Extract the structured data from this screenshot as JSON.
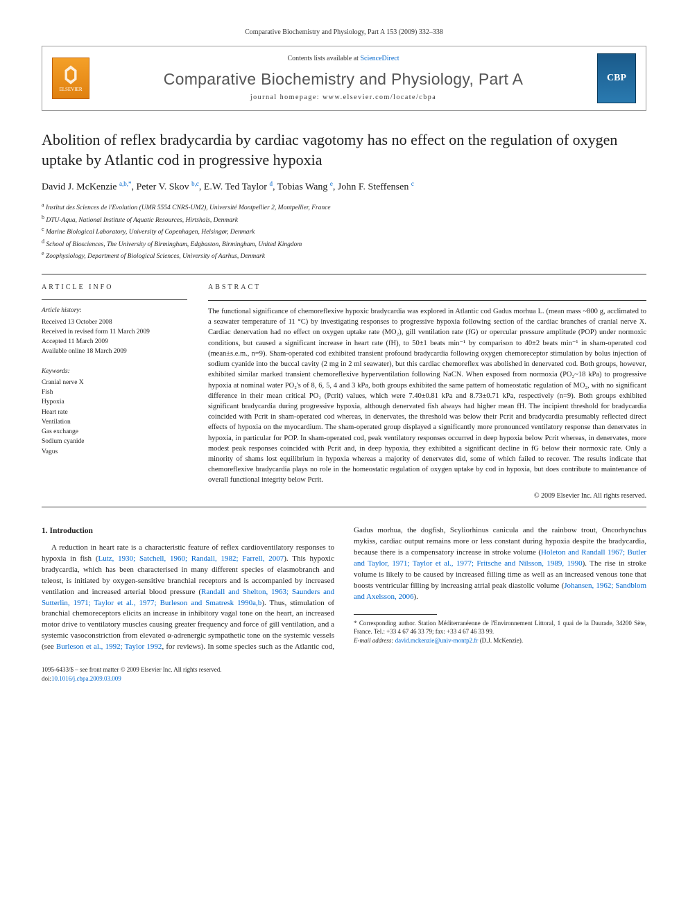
{
  "header": {
    "running": "Comparative Biochemistry and Physiology, Part A 153 (2009) 332–338"
  },
  "banner": {
    "contents_prefix": "Contents lists available at ",
    "sd_label": "ScienceDirect",
    "journal_name": "Comparative Biochemistry and Physiology, Part A",
    "homepage_prefix": "journal homepage: ",
    "homepage_url": "www.elsevier.com/locate/cbpa",
    "elsevier_label": "ELSEVIER",
    "cover_label": "CBP"
  },
  "article": {
    "title": "Abolition of reflex bradycardia by cardiac vagotomy has no effect on the regulation of oxygen uptake by Atlantic cod in progressive hypoxia",
    "authors_html": "David J. McKenzie <sup>a,b,*</sup>, Peter V. Skov <sup>b,c</sup>, E.W. Ted Taylor <sup>d</sup>, Tobias Wang <sup>e</sup>, John F. Steffensen <sup>c</sup>",
    "affiliations": [
      {
        "s": "a",
        "t": "Institut des Sciences de l'Evolution (UMR 5554 CNRS-UM2), Université Montpellier 2, Montpellier, France"
      },
      {
        "s": "b",
        "t": "DTU-Aqua, National Institute of Aquatic Resources, Hirtshals, Denmark"
      },
      {
        "s": "c",
        "t": "Marine Biological Laboratory, University of Copenhagen, Helsingør, Denmark"
      },
      {
        "s": "d",
        "t": "School of Biosciences, The University of Birmingham, Edgbaston, Birmingham, United Kingdom"
      },
      {
        "s": "e",
        "t": "Zoophysiology, Department of Biological Sciences, University of Aarhus, Denmark"
      }
    ]
  },
  "info": {
    "heading": "ARTICLE INFO",
    "history_label": "Article history:",
    "history": [
      "Received 13 October 2008",
      "Received in revised form 11 March 2009",
      "Accepted 11 March 2009",
      "Available online 18 March 2009"
    ],
    "keywords_label": "Keywords:",
    "keywords": [
      "Cranial nerve X",
      "Fish",
      "Hypoxia",
      "Heart rate",
      "Ventilation",
      "Gas exchange",
      "Sodium cyanide",
      "Vagus"
    ]
  },
  "abstract": {
    "heading": "ABSTRACT",
    "body": "The functional significance of chemoreflexive hypoxic bradycardia was explored in Atlantic cod Gadus morhua L. (mean mass ~800 g, acclimated to a seawater temperature of 11 °C) by investigating responses to progressive hypoxia following section of the cardiac branches of cranial nerve X. Cardiac denervation had no effect on oxygen uptake rate (MO₂), gill ventilation rate (fG) or opercular pressure amplitude (POP) under normoxic conditions, but caused a significant increase in heart rate (fH), to 50±1 beats min⁻¹ by comparison to 40±2 beats min⁻¹ in sham-operated cod (mean±s.e.m., n=9). Sham-operated cod exhibited transient profound bradycardia following oxygen chemoreceptor stimulation by bolus injection of sodium cyanide into the buccal cavity (2 mg in 2 ml seawater), but this cardiac chemoreflex was abolished in denervated cod. Both groups, however, exhibited similar marked transient chemoreflexive hyperventilation following NaCN. When exposed from normoxia (PO₂~18 kPa) to progressive hypoxia at nominal water PO₂'s of 8, 6, 5, 4 and 3 kPa, both groups exhibited the same pattern of homeostatic regulation of MO₂, with no significant difference in their mean critical PO₂ (Pcrit) values, which were 7.40±0.81 kPa and 8.73±0.71 kPa, respectively (n=9). Both groups exhibited significant bradycardia during progressive hypoxia, although denervated fish always had higher mean fH. The incipient threshold for bradycardia coincided with Pcrit in sham-operated cod whereas, in denervates, the threshold was below their Pcrit and bradycardia presumably reflected direct effects of hypoxia on the myocardium. The sham-operated group displayed a significantly more pronounced ventilatory response than denervates in hypoxia, in particular for POP. In sham-operated cod, peak ventilatory responses occurred in deep hypoxia below Pcrit whereas, in denervates, more modest peak responses coincided with Pcrit and, in deep hypoxia, they exhibited a significant decline in fG below their normoxic rate. Only a minority of shams lost equilibrium in hypoxia whereas a majority of denervates did, some of which failed to recover. The results indicate that chemoreflexive bradycardia plays no role in the homeostatic regulation of oxygen uptake by cod in hypoxia, but does contribute to maintenance of overall functional integrity below Pcrit.",
    "copyright": "© 2009 Elsevier Inc. All rights reserved."
  },
  "body": {
    "section_heading": "1. Introduction",
    "para1_a": "A reduction in heart rate is a characteristic feature of reflex cardioventilatory responses to hypoxia in fish (",
    "para1_ref1": "Lutz, 1930; Satchell, 1960; Randall, 1982; Farrell, 2007",
    "para1_b": "). This hypoxic bradycardia, which has been characterised in many different species of elasmobranch and teleost, is initiated by oxygen-sensitive branchial receptors and is accompanied by increased ventilation and increased arterial blood pressure (",
    "para1_ref2": "Randall and Shelton, 1963; Saunders and Sutterlin, 1971; Taylor et al., 1977; Burleson and Smatresk 1990a,b",
    "para1_c": "). Thus, stimulation ",
    "para2_a": "of branchial chemoreceptors elicits an increase in inhibitory vagal tone on the heart, an increased motor drive to ventilatory muscles causing greater frequency and force of gill ventilation, and a systemic vasoconstriction from elevated α-adrenergic sympathetic tone on the systemic vessels (see ",
    "para2_ref1": "Burleson et al., 1992; Taylor 1992",
    "para2_b": ", for reviews). In some species such as the Atlantic cod, Gadus morhua, the dogfish, Scyliorhinus canicula and the rainbow trout, Oncorhynchus mykiss, cardiac output remains more or less constant during hypoxia despite the bradycardia, because there is a compensatory increase in stroke volume (",
    "para2_ref2": "Holeton and Randall 1967; Butler and Taylor, 1971; Taylor et al., 1977; Fritsche and Nilsson, 1989, 1990",
    "para2_c": "). The rise in stroke volume is likely to be caused by increased filling time as well as an increased venous tone that boosts ventricular filling by increasing atrial peak diastolic volume (",
    "para2_ref3": "Johansen, 1962; Sandblom and Axelsson, 2006",
    "para2_d": ")."
  },
  "footnote": {
    "corr": "* Corresponding author. Station Méditerranéenne de l'Environnement Littoral, 1 quai de la Daurade, 34200 Sète, France. Tel.: +33 4 67 46 33 79; fax: +33 4 67 46 33 99.",
    "email_label": "E-mail address: ",
    "email": "david.mckenzie@univ-montp2.fr",
    "email_suffix": " (D.J. McKenzie)."
  },
  "footer": {
    "issn": "1095-6433/$ – see front matter © 2009 Elsevier Inc. All rights reserved.",
    "doi_label": "doi:",
    "doi": "10.1016/j.cbpa.2009.03.009"
  },
  "colors": {
    "link": "#0066cc",
    "rule": "#333333",
    "elsevier_bg": "#e88518",
    "cover_bg": "#1a6aa0"
  }
}
